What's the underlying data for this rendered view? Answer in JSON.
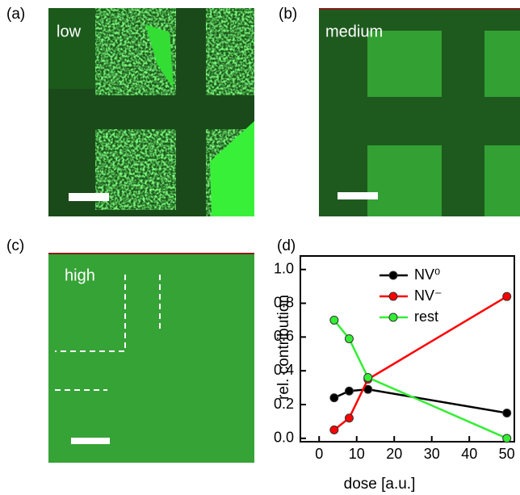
{
  "panels": [
    {
      "label": "(a)",
      "caption": "low"
    },
    {
      "label": "(b)",
      "caption": "medium"
    },
    {
      "label": "(c)",
      "caption": "high"
    },
    {
      "label": "(d)"
    }
  ],
  "chart_data": {
    "type": "line",
    "x_label": "dose [a.u.]",
    "y_label": "rel. contribution",
    "x": [
      4,
      8,
      13,
      50
    ],
    "series": [
      {
        "name": "NV⁰",
        "color": "#000000",
        "values": [
          0.24,
          0.28,
          0.29,
          0.15
        ]
      },
      {
        "name": "NV⁻",
        "color": "#ff0000",
        "values": [
          0.05,
          0.12,
          0.35,
          0.84
        ]
      },
      {
        "name": "rest",
        "color": "#33ee33",
        "values": [
          0.7,
          0.59,
          0.36,
          0.0
        ]
      }
    ],
    "xlim": [
      -5,
      52
    ],
    "ylim": [
      -0.02,
      1.08
    ],
    "xticks": [
      0,
      10,
      20,
      30,
      40,
      50
    ],
    "yticks": [
      {
        "value": 0,
        "label": "0.0"
      },
      0.2,
      0.4,
      0.6,
      0.8,
      {
        "value": 1,
        "label": "1.0"
      }
    ],
    "legend": "top"
  }
}
